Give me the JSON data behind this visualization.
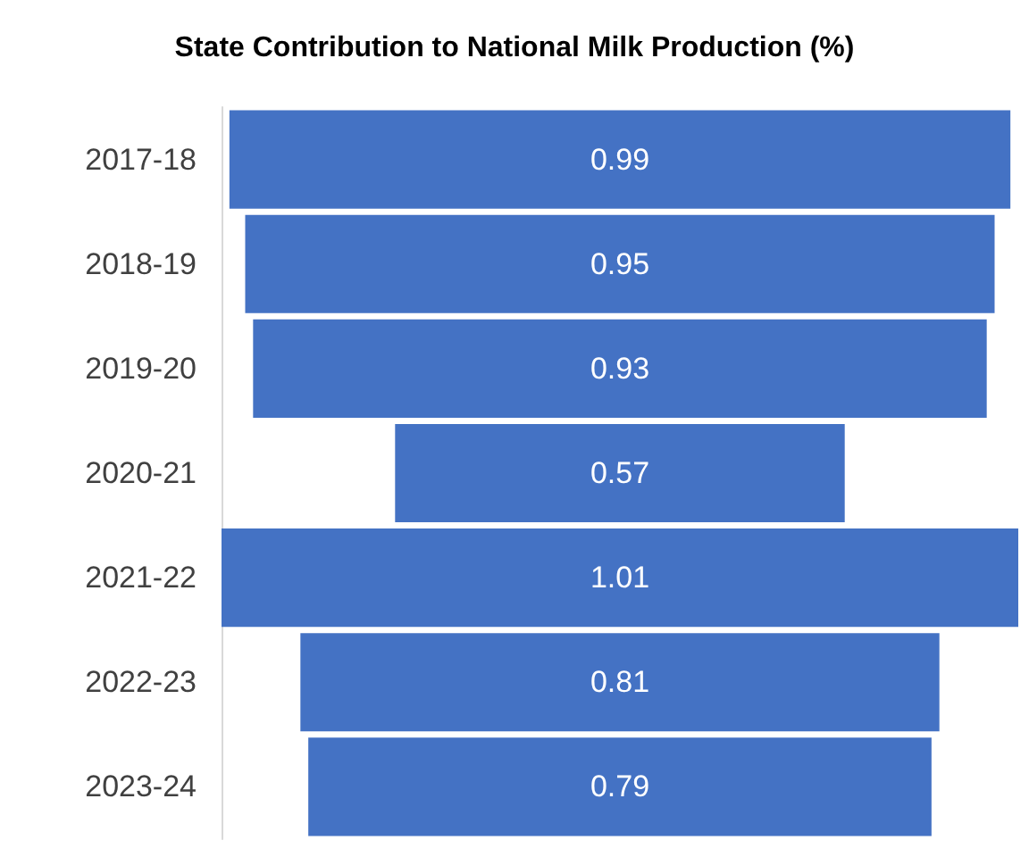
{
  "chart_data": {
    "type": "other",
    "title": "State Contribution to National Milk Production (%)",
    "categories": [
      "2017-18",
      "2018-19",
      "2019-20",
      "2020-21",
      "2021-22",
      "2022-23",
      "2023-24"
    ],
    "values": [
      0.99,
      0.95,
      0.93,
      0.57,
      1.01,
      0.81,
      0.79
    ],
    "color": "#4472c4",
    "data_labels": true
  }
}
